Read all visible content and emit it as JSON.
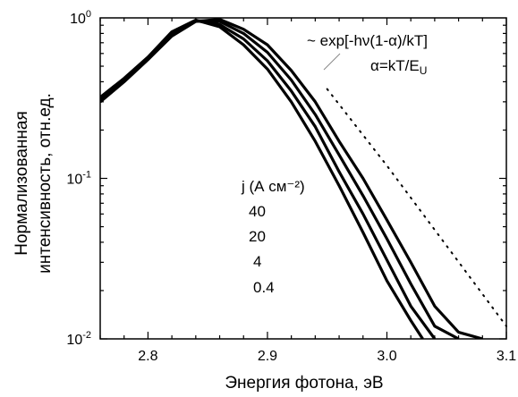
{
  "chart_data": {
    "type": "line",
    "title": "",
    "xlabel": "Энергия фотона, эВ",
    "ylabel_lines": [
      "Нормализованная",
      "интенсивность, отн.ед."
    ],
    "xlim": [
      2.76,
      3.1
    ],
    "ylim": [
      0.01,
      1
    ],
    "yscale": "log",
    "grid": false,
    "x_ticks": [
      {
        "value": 2.8,
        "label": "2.8"
      },
      {
        "value": 2.9,
        "label": "2.9"
      },
      {
        "value": 3.0,
        "label": "3.0"
      },
      {
        "value": 3.1,
        "label": "3.1"
      }
    ],
    "y_ticks": [
      {
        "value": 1,
        "base": "10",
        "exp": "0"
      },
      {
        "value": 0.1,
        "base": "10",
        "exp": "-1"
      },
      {
        "value": 0.01,
        "base": "10",
        "exp": "-2"
      }
    ],
    "fit_formula_line1": "~ exp[-hν(1-α)/kT]",
    "fit_formula_line2_main": "α=kT/E",
    "fit_formula_line2_sub": "U",
    "current_density_label": "j (А см⁻²)",
    "series_labels": [
      "40",
      "20",
      "4",
      "0.4"
    ],
    "series": [
      {
        "name": "40",
        "x": [
          2.76,
          2.78,
          2.8,
          2.82,
          2.84,
          2.86,
          2.88,
          2.9,
          2.92,
          2.94,
          2.96,
          2.98,
          3.0,
          3.02,
          3.04,
          3.06,
          3.08
        ],
        "y": [
          0.3,
          0.4,
          0.55,
          0.77,
          0.95,
          0.98,
          0.85,
          0.68,
          0.47,
          0.3,
          0.17,
          0.1,
          0.055,
          0.03,
          0.016,
          0.011,
          0.01
        ]
      },
      {
        "name": "20",
        "x": [
          2.76,
          2.78,
          2.8,
          2.82,
          2.84,
          2.86,
          2.88,
          2.9,
          2.92,
          2.94,
          2.96,
          2.98,
          3.0,
          3.02,
          3.04,
          3.06
        ],
        "y": [
          0.3,
          0.4,
          0.55,
          0.78,
          0.96,
          0.95,
          0.8,
          0.61,
          0.41,
          0.25,
          0.14,
          0.078,
          0.042,
          0.022,
          0.012,
          0.01
        ]
      },
      {
        "name": "4",
        "x": [
          2.76,
          2.78,
          2.8,
          2.82,
          2.84,
          2.86,
          2.88,
          2.9,
          2.92,
          2.94,
          2.96,
          2.98,
          3.0,
          3.02,
          3.04
        ],
        "y": [
          0.31,
          0.41,
          0.56,
          0.8,
          0.96,
          0.91,
          0.74,
          0.54,
          0.35,
          0.21,
          0.11,
          0.06,
          0.031,
          0.016,
          0.01
        ]
      },
      {
        "name": "0.4",
        "x": [
          2.76,
          2.78,
          2.8,
          2.82,
          2.84,
          2.86,
          2.88,
          2.9,
          2.92,
          2.94,
          2.96,
          2.98,
          3.0,
          3.02,
          3.03
        ],
        "y": [
          0.32,
          0.42,
          0.57,
          0.82,
          0.97,
          0.88,
          0.68,
          0.48,
          0.3,
          0.17,
          0.09,
          0.046,
          0.023,
          0.013,
          0.01
        ]
      }
    ],
    "fit_line": {
      "name": "~ exp[-hν(1-α)/kT]",
      "x": [
        2.95,
        3.0,
        3.05,
        3.1
      ],
      "y": [
        0.36,
        0.12,
        0.038,
        0.012
      ]
    }
  }
}
